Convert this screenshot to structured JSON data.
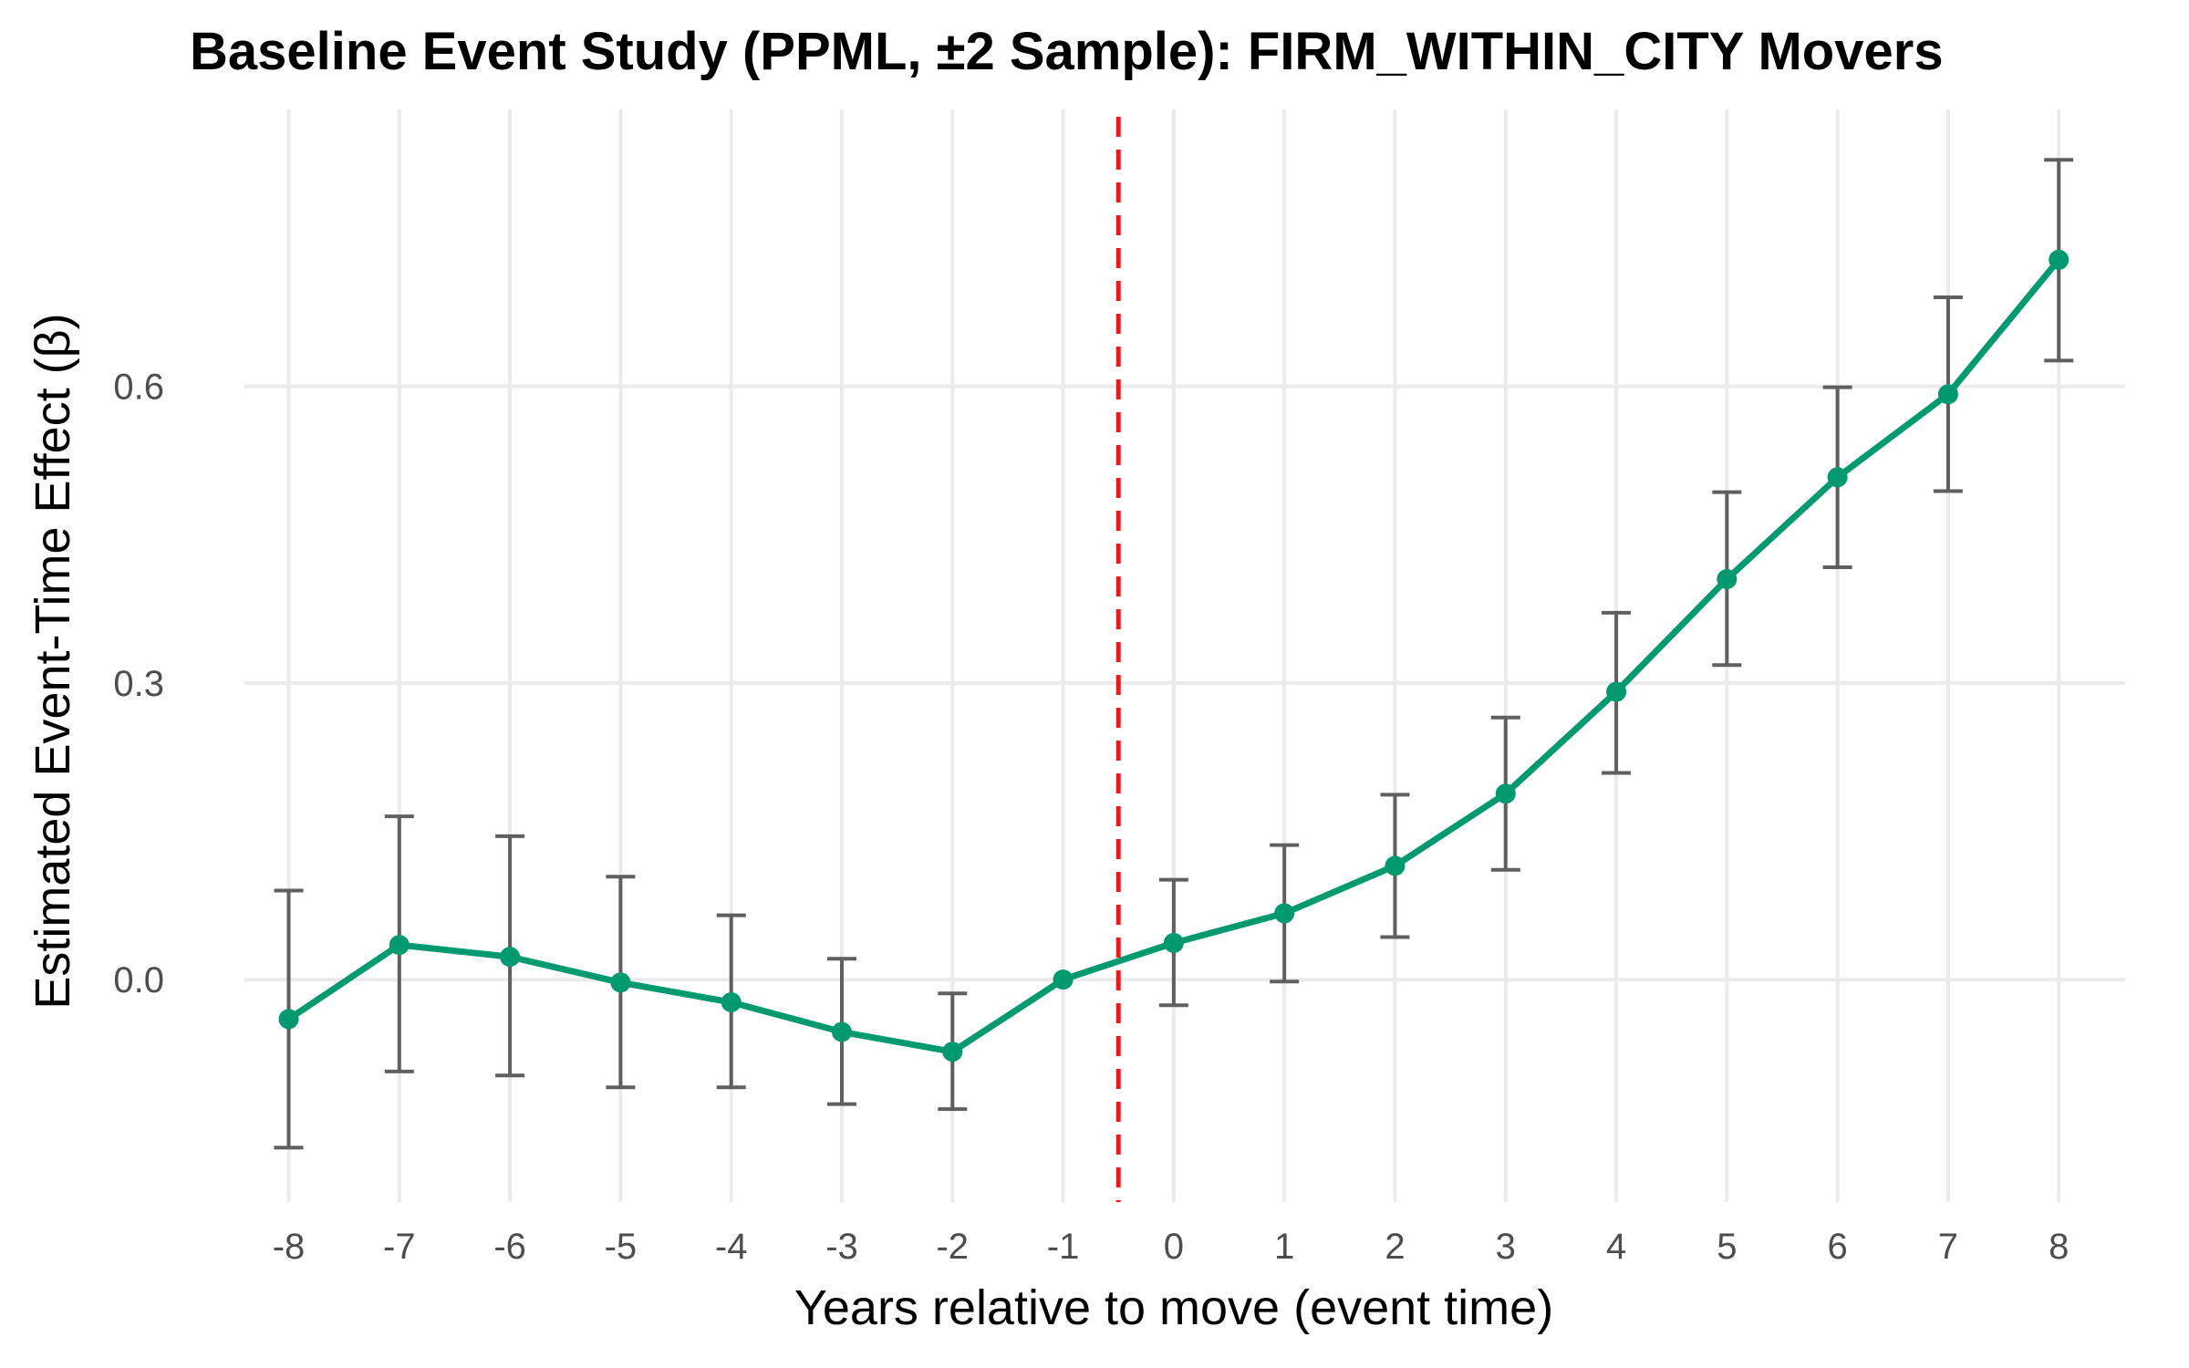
{
  "chart_data": {
    "type": "line",
    "title": "Baseline Event Study (PPML, ±2 Sample): FIRM_WITHIN_CITY Movers",
    "xlabel": "Years relative to move (event time)",
    "ylabel": "Estimated Event-Time Effect (β)",
    "x": [
      -8,
      -7,
      -6,
      -5,
      -4,
      -3,
      -2,
      -1,
      0,
      1,
      2,
      3,
      4,
      5,
      6,
      7,
      8
    ],
    "x_tick_labels": [
      "-8",
      "-7",
      "-6",
      "-5",
      "-4",
      "-3",
      "-2",
      "-1",
      "0",
      "1",
      "2",
      "3",
      "4",
      "5",
      "6",
      "7",
      "8"
    ],
    "y_ticks": [
      0.0,
      0.3,
      0.6
    ],
    "y_tick_labels": [
      "0.0",
      "0.3",
      "0.6"
    ],
    "xlim": [
      -8.4,
      8.6
    ],
    "ylim": [
      -0.225,
      0.88
    ],
    "series": [
      {
        "values": [
          -0.04,
          0.035,
          0.023,
          -0.003,
          -0.023,
          -0.053,
          -0.073,
          0.0,
          0.037,
          0.067,
          0.115,
          0.188,
          0.291,
          0.405,
          0.508,
          0.592,
          0.728
        ],
        "ci_low": [
          -0.17,
          -0.093,
          -0.097,
          -0.109,
          -0.109,
          -0.126,
          -0.131,
          0.0,
          -0.026,
          -0.002,
          0.043,
          0.111,
          0.209,
          0.318,
          0.417,
          0.494,
          0.626
        ],
        "ci_high": [
          0.09,
          0.165,
          0.145,
          0.104,
          0.065,
          0.021,
          -0.014,
          0.0,
          0.101,
          0.136,
          0.187,
          0.265,
          0.371,
          0.493,
          0.599,
          0.69,
          0.829
        ]
      }
    ],
    "reference_line_x": -0.5,
    "grid": true,
    "colors": {
      "line": "#009970",
      "error_bar": "#5f5f5f",
      "reference_line": "#e8191c",
      "grid": "#ebebeb"
    }
  }
}
